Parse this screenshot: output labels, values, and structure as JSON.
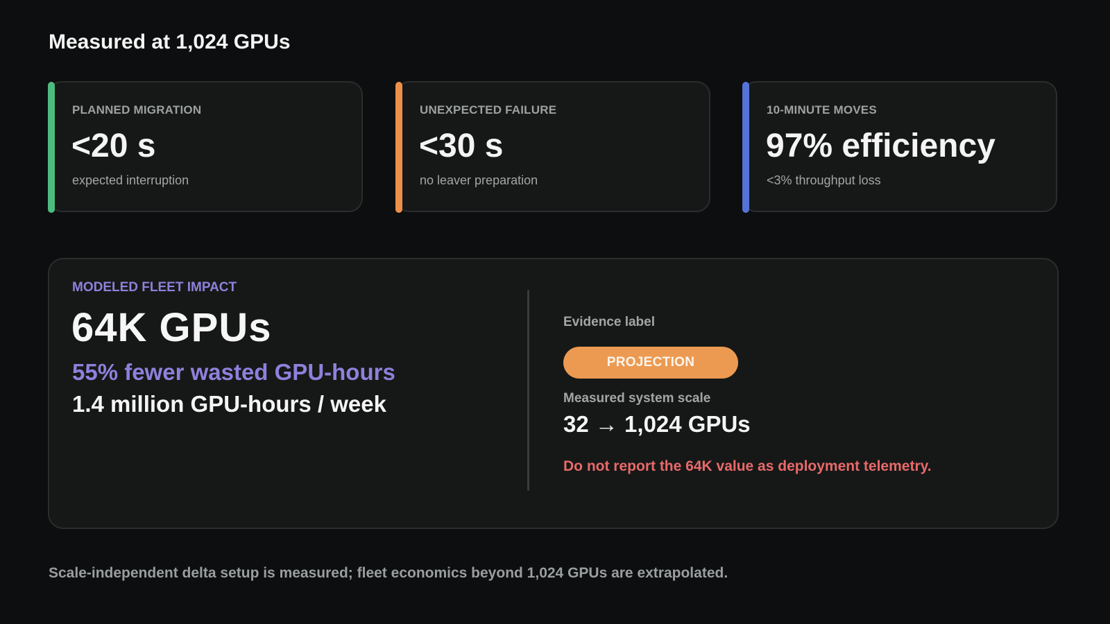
{
  "heading": "Measured at 1,024 GPUs",
  "cards": [
    {
      "label": "PLANNED MIGRATION",
      "value": "<20 s",
      "sub": "expected interruption",
      "accent": "#4dbb7f"
    },
    {
      "label": "UNEXPECTED FAILURE",
      "value": "<30 s",
      "sub": "no leaver preparation",
      "accent": "#ec8f4a"
    },
    {
      "label": "10-MINUTE MOVES",
      "value": "97% efficiency",
      "sub": "<3% throughput loss",
      "accent": "#5572d6"
    }
  ],
  "impact": {
    "label": "MODELED FLEET IMPACT",
    "value": "64K GPUs",
    "savings": "55% fewer wasted GPU-hours",
    "hours": "1.4 million GPU-hours / week",
    "evidence_label": "Evidence label",
    "badge": "PROJECTION",
    "scale_label": "Measured system scale",
    "scale_value": "32 → 1,024 GPUs",
    "warning": "Do not report the 64K value as deployment telemetry.",
    "accent": "#8f80dc",
    "badge_color": "#ec9a52",
    "warning_color": "#e86a6a"
  },
  "footnote": "Scale-independent delta setup is measured; fleet economics beyond 1,024 GPUs are extrapolated."
}
